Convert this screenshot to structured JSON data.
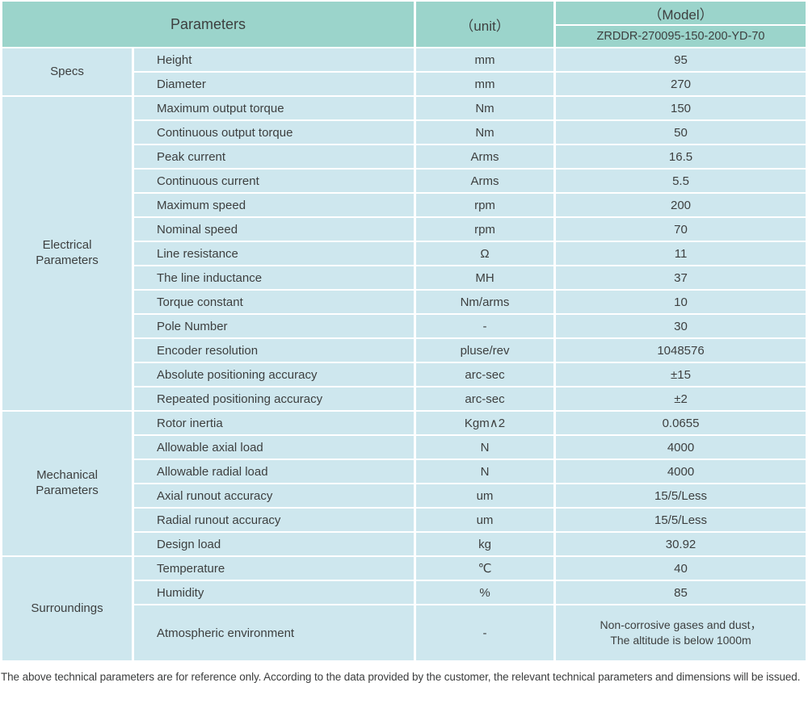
{
  "header": {
    "parameters_label": "Parameters",
    "unit_label": "（unit）",
    "model_label": "（Model）",
    "model_number": "ZRDDR-270095-150-200-YD-70"
  },
  "colors": {
    "header_teal": "#9bd4cb",
    "row_blue": "#cee7ee",
    "text": "#3d3f3f"
  },
  "groups": [
    {
      "label": "Specs",
      "rows": [
        {
          "name": "Height",
          "unit": "mm",
          "value": "95"
        },
        {
          "name": "Diameter",
          "unit": "mm",
          "value": "270"
        }
      ]
    },
    {
      "label": "Electrical Parameters",
      "rows": [
        {
          "name": "Maximum output torque",
          "unit": "Nm",
          "value": "150"
        },
        {
          "name": "Continuous output torque",
          "unit": "Nm",
          "value": "50"
        },
        {
          "name": "Peak current",
          "unit": "Arms",
          "value": "16.5"
        },
        {
          "name": "Continuous current",
          "unit": "Arms",
          "value": "5.5"
        },
        {
          "name": "Maximum speed",
          "unit": "rpm",
          "value": "200"
        },
        {
          "name": "Nominal speed",
          "unit": "rpm",
          "value": "70"
        },
        {
          "name": "Line resistance",
          "unit": "Ω",
          "value": "11"
        },
        {
          "name": "The line inductance",
          "unit": "MH",
          "value": "37"
        },
        {
          "name": "Torque constant",
          "unit": "Nm/arms",
          "value": "10"
        },
        {
          "name": "Pole Number",
          "unit": "-",
          "value": "30"
        },
        {
          "name": "Encoder resolution",
          "unit": "pluse/rev",
          "value": "1048576"
        },
        {
          "name": "Absolute positioning accuracy",
          "unit": "arc-sec",
          "value": "±15"
        },
        {
          "name": "Repeated positioning accuracy",
          "unit": "arc-sec",
          "value": "±2"
        }
      ]
    },
    {
      "label": "Mechanical Parameters",
      "rows": [
        {
          "name": "Rotor inertia",
          "unit": "Kgm∧2",
          "value": "0.0655"
        },
        {
          "name": "Allowable axial load",
          "unit": "N",
          "value": "4000"
        },
        {
          "name": "Allowable radial load",
          "unit": "N",
          "value": "4000"
        },
        {
          "name": "Axial runout accuracy",
          "unit": "um",
          "value": "15/5/Less"
        },
        {
          "name": "Radial runout accuracy",
          "unit": "um",
          "value": "15/5/Less"
        },
        {
          "name": "Design load",
          "unit": "kg",
          "value": "30.92"
        }
      ]
    },
    {
      "label": "Surroundings",
      "rows": [
        {
          "name": "Temperature",
          "unit": "℃",
          "value": "40"
        },
        {
          "name": "Humidity",
          "unit": "%",
          "value": "85"
        },
        {
          "name": "Atmospheric environment",
          "unit": "-",
          "value_lines": [
            "Non-corrosive gases and dust，",
            "The altitude is below 1000m"
          ],
          "tall": true
        }
      ]
    }
  ],
  "footer": {
    "note": "The above technical parameters are for reference only. According to the data provided by the customer, the relevant technical parameters and dimensions will be issued."
  }
}
